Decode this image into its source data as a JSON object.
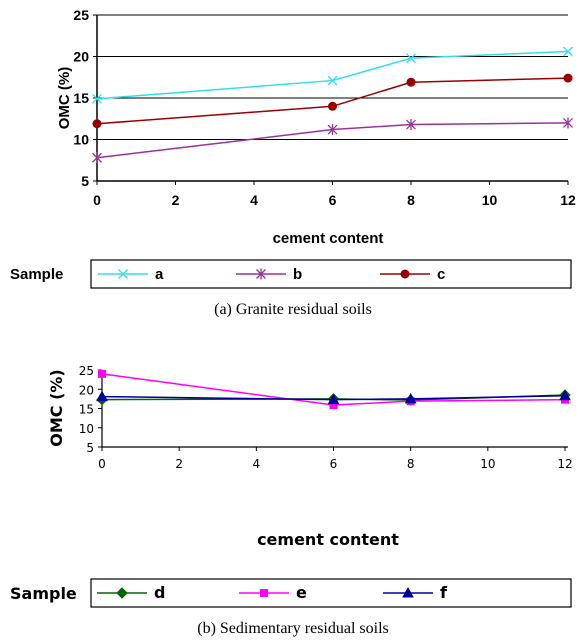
{
  "chart_data": [
    {
      "type": "line",
      "title": "",
      "xlabel": "cement content",
      "ylabel": "OMC (%)",
      "caption": "(a) Granite residual soils",
      "legend_title": "Sample",
      "legend_position": "bottom",
      "xlim": [
        0,
        12
      ],
      "ylim": [
        5,
        25
      ],
      "xticks": [
        "0",
        "2",
        "4",
        "6",
        "8",
        "10",
        "12"
      ],
      "yticks": [
        "5",
        "10",
        "15",
        "20",
        "25"
      ],
      "x": [
        0,
        6,
        8,
        12
      ],
      "series": [
        {
          "name": "a",
          "values": [
            14.9,
            17.1,
            19.8,
            20.6
          ],
          "color": "#33ddee",
          "marker": "x"
        },
        {
          "name": "b",
          "values": [
            7.8,
            11.2,
            11.8,
            12.0
          ],
          "color": "#993399",
          "marker": "asterisk"
        },
        {
          "name": "c",
          "values": [
            11.9,
            14.0,
            16.9,
            17.4
          ],
          "color": "#990000",
          "marker": "circle"
        }
      ]
    },
    {
      "type": "line",
      "title": "",
      "xlabel": "cement content",
      "ylabel": "OMC (%)",
      "caption": "(b) Sedimentary residual soils",
      "legend_title": "Sample",
      "legend_position": "bottom",
      "xlim": [
        0,
        12
      ],
      "ylim": [
        5,
        25
      ],
      "xticks": [
        "0",
        "2",
        "4",
        "6",
        "8",
        "10",
        "12"
      ],
      "yticks": [
        "5",
        "10",
        "15",
        "20",
        "25"
      ],
      "x": [
        0,
        6,
        8,
        12
      ],
      "series": [
        {
          "name": "d",
          "values": [
            17.3,
            17.5,
            17.2,
            18.5
          ],
          "color": "#006600",
          "marker": "diamond"
        },
        {
          "name": "e",
          "values": [
            24.0,
            15.9,
            16.9,
            17.3
          ],
          "color": "#ff00ff",
          "marker": "square"
        },
        {
          "name": "f",
          "values": [
            18.1,
            17.3,
            17.5,
            18.3
          ],
          "color": "#000099",
          "marker": "triangle"
        }
      ]
    }
  ]
}
